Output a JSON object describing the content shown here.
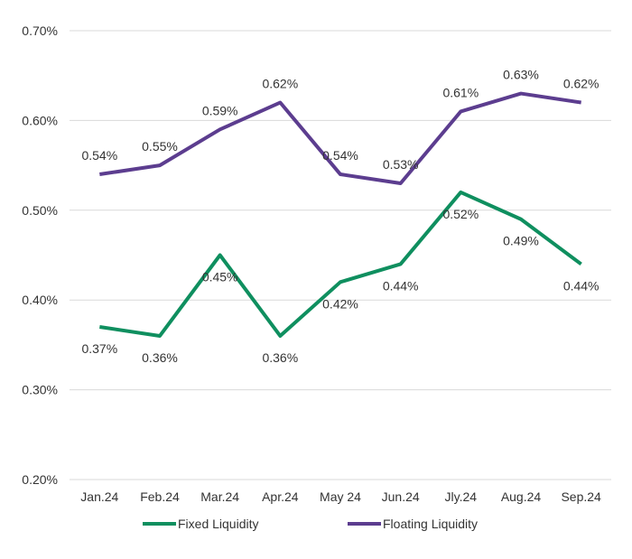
{
  "chart_data": {
    "type": "line",
    "title": "",
    "xlabel": "",
    "ylabel": "",
    "categories": [
      "Jan.24",
      "Feb.24",
      "Mar.24",
      "Apr.24",
      "May 24",
      "Jun.24",
      "Jly.24",
      "Aug.24",
      "Sep.24"
    ],
    "ylim": [
      0.2,
      0.7
    ],
    "yticks": [
      0.2,
      0.3,
      0.4,
      0.5,
      0.6,
      0.7
    ],
    "ytick_labels": [
      "0.20%",
      "0.30%",
      "0.40%",
      "0.50%",
      "0.60%",
      "0.70%"
    ],
    "grid": true,
    "legend_position": "bottom",
    "series": [
      {
        "name": "Fixed Liquidity",
        "color": "#0f8f5f",
        "values": [
          0.37,
          0.36,
          0.45,
          0.36,
          0.42,
          0.44,
          0.52,
          0.49,
          0.44
        ],
        "labels": [
          "0.37%",
          "0.36%",
          "0.45%",
          "0.36%",
          "0.42%",
          "0.44%",
          "0.52%",
          "0.49%",
          "0.44%"
        ]
      },
      {
        "name": "Floating Liquidity",
        "color": "#5c3d8f",
        "values": [
          0.54,
          0.55,
          0.59,
          0.62,
          0.54,
          0.53,
          0.61,
          0.63,
          0.62
        ],
        "labels": [
          "0.54%",
          "0.55%",
          "0.59%",
          "0.62%",
          "0.54%",
          "0.53%",
          "0.61%",
          "0.63%",
          "0.62%"
        ]
      }
    ]
  }
}
